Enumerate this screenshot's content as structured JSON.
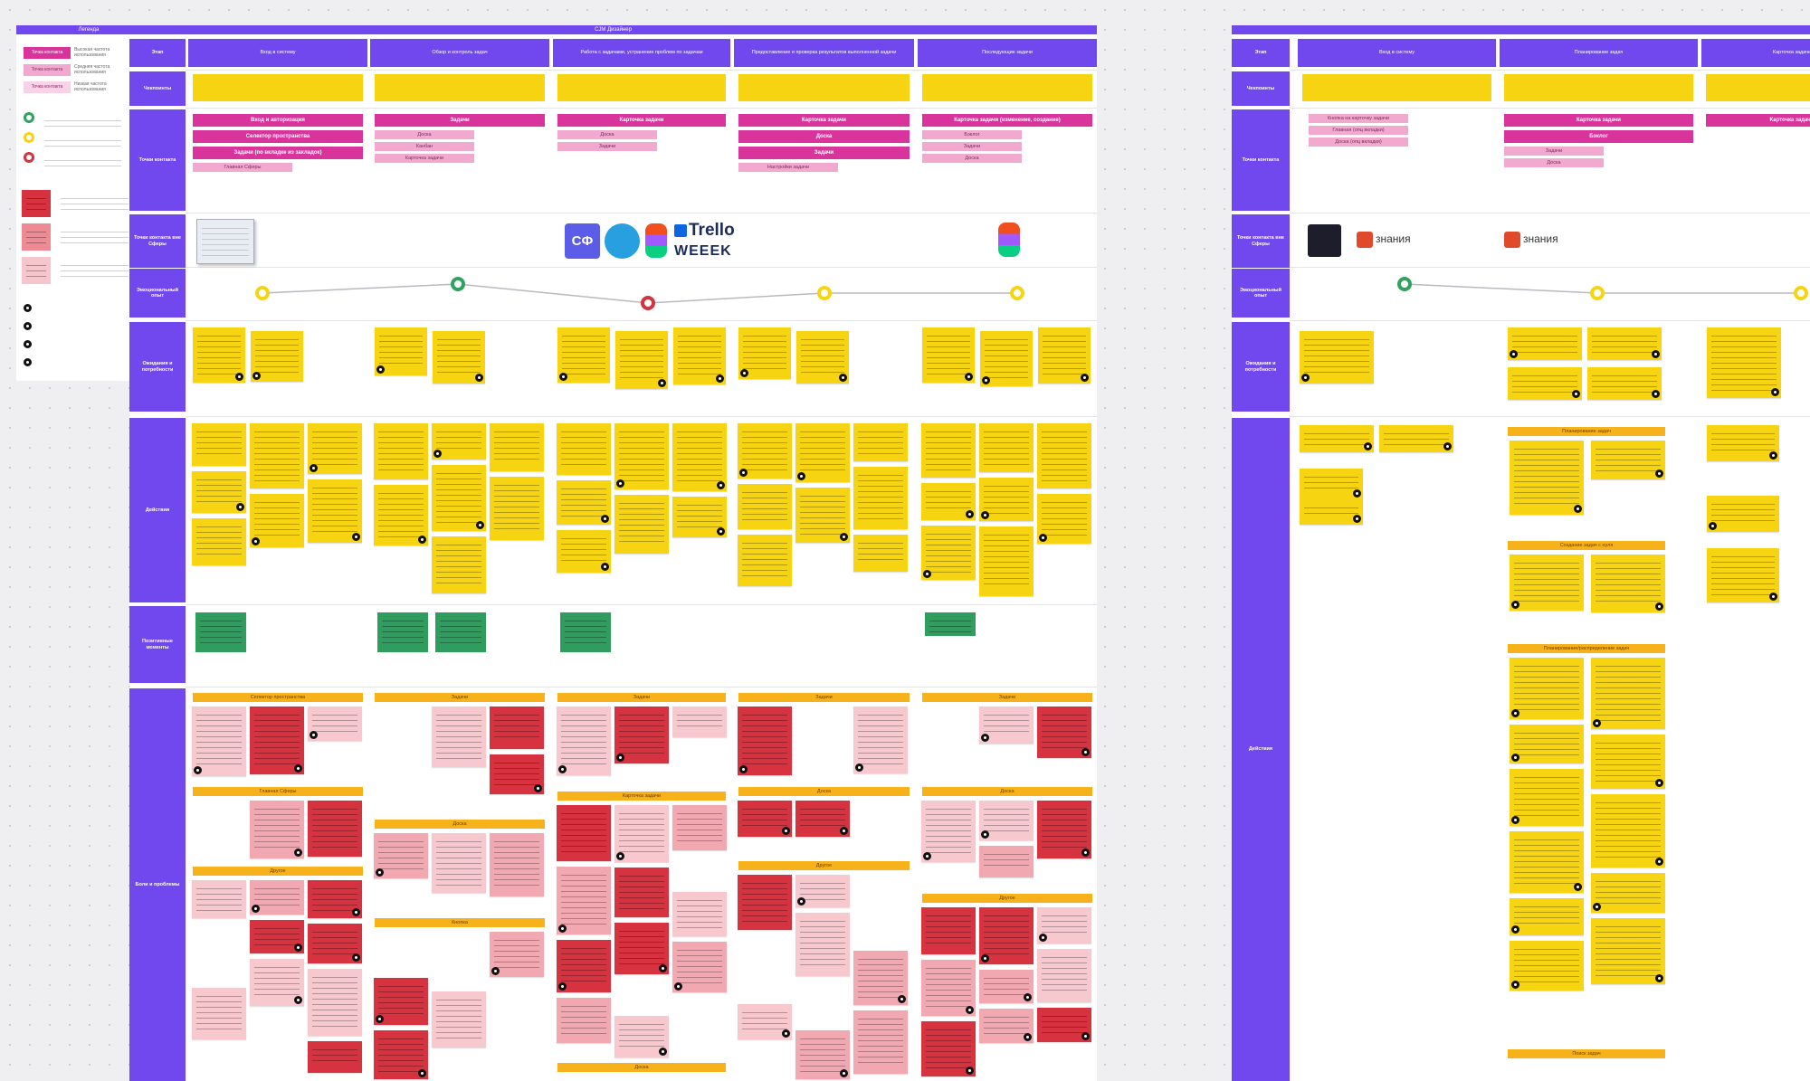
{
  "legend": {
    "title": "Легенда",
    "items": [
      {
        "label": "Точка контакта",
        "note": "Высокая частота использования"
      },
      {
        "label": "Точка контакта",
        "note": "Средняя частота использования"
      },
      {
        "label": "Точка контакта",
        "note": "Низкая частота использования"
      }
    ]
  },
  "main_board": {
    "title": "CJM Дизайнер",
    "row_labels": [
      "Этап",
      "Чекпоинты",
      "Точки контакта",
      "Точки контакта вне Сферы",
      "Эмоциональный опыт",
      "Ожидания и потребности",
      "Действия",
      "Позитивные моменты",
      "Боли и проблемы"
    ],
    "stages": [
      "Вход в систему",
      "Обзор и контроль задач",
      "Работа с задачами, устранение проблем по задачам",
      "Предоставление и проверка результатов выполненной задачи",
      "Последующие задачи"
    ],
    "touch_points": [
      {
        "primary": [
          "Вход и авторизация",
          "Селектор пространства",
          "Задачи (по вкладке из закладок)"
        ],
        "secondary": [
          "Главная Сферы"
        ]
      },
      {
        "primary": [
          "Задачи"
        ],
        "secondary": [
          "Доска",
          "Канбан",
          "Карточка задачи"
        ]
      },
      {
        "primary": [
          "Карточка задачи"
        ],
        "secondary": [
          "Доска",
          "Задачи"
        ]
      },
      {
        "primary": [
          "Карточка задачи",
          "Доска",
          "Задачи"
        ],
        "secondary": [
          "Настройки задачи"
        ]
      },
      {
        "primary": [
          "Карточка задачи (изменение, создание)"
        ],
        "secondary": [
          "Бэклог",
          "Задачи",
          "Доска"
        ]
      }
    ],
    "channels": [
      "СФ",
      "Trello",
      "WEEEK"
    ],
    "problem_sections": [
      [
        "Селектор пространства",
        "Главная Сферы",
        "Другое"
      ],
      [
        "Задачи",
        "Доска",
        "Кнопка"
      ],
      [
        "Задачи",
        "Карточка задачи",
        "Доска"
      ],
      [
        "Задачи",
        "Доска",
        "Другое"
      ],
      [
        "Задачи",
        "Доска",
        "Другое"
      ]
    ]
  },
  "right_board": {
    "row_labels": [
      "Этап",
      "Чекпоинты",
      "Точки контакта",
      "Точки контакта вне Сферы",
      "Эмоциональный опыт",
      "Ожидания и потребности",
      "Действия"
    ],
    "stages": [
      "Вход в систему",
      "Планирование задач",
      "Карточка задачи"
    ],
    "touch_points": [
      {
        "primary": [],
        "secondary": [
          "Кнопка на карточку задачи",
          "Главная (опц вкладки)",
          "Доска (опц вкладки)"
        ]
      },
      {
        "primary": [
          "Карточка задачи",
          "Бэклог"
        ],
        "secondary": [
          "Задачи",
          "Доска"
        ]
      },
      {
        "primary": [
          "Карточка задачи"
        ],
        "secondary": []
      }
    ],
    "channels": [
      "знания",
      "знания"
    ],
    "action_sections": [
      "Планирование задач",
      "Создание задач с нуля",
      "Планирование/распределение задач",
      "Поиск задач"
    ]
  }
}
